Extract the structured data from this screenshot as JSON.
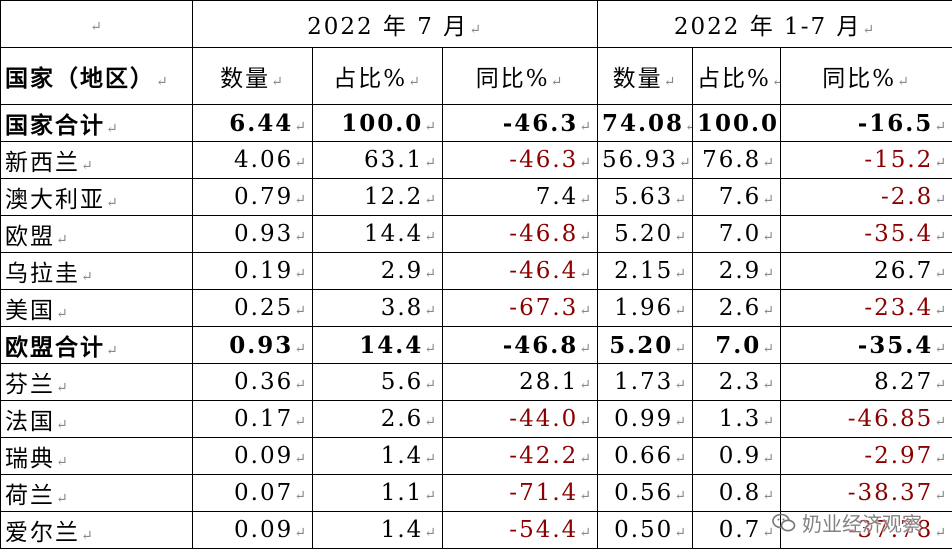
{
  "para_mark": "↵",
  "header": {
    "period_1": "2022 年 7 月",
    "period_2": "2022 年 1-7 月",
    "country_label": "国家（地区）",
    "qty_label": "数量",
    "share_label": "占比%",
    "yoy_label": "同比%"
  },
  "rows": [
    {
      "name": "国家合计",
      "q1": "6.44",
      "s1": "100.0",
      "y1": "-46.3",
      "q2": "74.08",
      "s2": "100.0",
      "y2": "-16.5"
    },
    {
      "name": "新西兰",
      "q1": "4.06",
      "s1": "63.1",
      "y1": "-46.3",
      "q2": "56.93",
      "s2": "76.8",
      "y2": "-15.2"
    },
    {
      "name": "澳大利亚",
      "q1": "0.79",
      "s1": "12.2",
      "y1": "7.4",
      "q2": "5.63",
      "s2": "7.6",
      "y2": "-2.8"
    },
    {
      "name": "欧盟",
      "q1": "0.93",
      "s1": "14.4",
      "y1": "-46.8",
      "q2": "5.20",
      "s2": "7.0",
      "y2": "-35.4"
    },
    {
      "name": "乌拉圭",
      "q1": "0.19",
      "s1": "2.9",
      "y1": "-46.4",
      "q2": "2.15",
      "s2": "2.9",
      "y2": "26.7"
    },
    {
      "name": "美国",
      "q1": "0.25",
      "s1": "3.8",
      "y1": "-67.3",
      "q2": "1.96",
      "s2": "2.6",
      "y2": "-23.4"
    },
    {
      "name": "欧盟合计",
      "q1": "0.93",
      "s1": "14.4",
      "y1": "-46.8",
      "q2": "5.20",
      "s2": "7.0",
      "y2": "-35.4"
    },
    {
      "name": "芬兰",
      "q1": "0.36",
      "s1": "5.6",
      "y1": "28.1",
      "q2": "1.73",
      "s2": "2.3",
      "y2": "8.27"
    },
    {
      "name": "法国",
      "q1": "0.17",
      "s1": "2.6",
      "y1": "-44.0",
      "q2": "0.99",
      "s2": "1.3",
      "y2": "-46.85"
    },
    {
      "name": "瑞典",
      "q1": "0.09",
      "s1": "1.4",
      "y1": "-42.2",
      "q2": "0.66",
      "s2": "0.9",
      "y2": "-2.97"
    },
    {
      "name": "荷兰",
      "q1": "0.07",
      "s1": "1.1",
      "y1": "-71.4",
      "q2": "0.56",
      "s2": "0.8",
      "y2": "-38.37"
    },
    {
      "name": "爱尔兰",
      "q1": "0.09",
      "s1": "1.4",
      "y1": "-54.4",
      "q2": "0.50",
      "s2": "0.7",
      "y2": "-37.78"
    }
  ],
  "watermark": {
    "text": "奶业经济观察",
    "icon": "wechat-icon"
  },
  "colors": {
    "negative_red": "#8b0000",
    "text": "#000000"
  }
}
